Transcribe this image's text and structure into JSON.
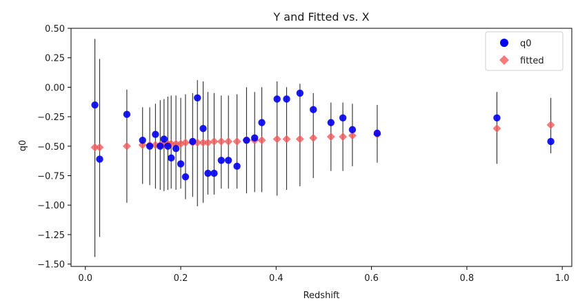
{
  "chart_data": {
    "type": "scatter",
    "title": "Y and Fitted vs. X",
    "xlabel": "Redshift",
    "ylabel": "q0",
    "xlim": [
      -0.03,
      1.02
    ],
    "ylim": [
      -1.52,
      0.5
    ],
    "xticks": [
      0.0,
      0.2,
      0.4,
      0.6,
      0.8,
      1.0
    ],
    "xtick_labels": [
      "0.0",
      "0.2",
      "0.4",
      "0.6",
      "0.8",
      "1.0"
    ],
    "yticks": [
      0.5,
      0.25,
      0.0,
      -0.25,
      -0.5,
      -0.75,
      -1.0,
      -1.25,
      -1.5
    ],
    "ytick_labels": [
      "0.50",
      "0.25",
      "0.00",
      "−0.25",
      "−0.50",
      "−0.75",
      "−1.00",
      "−1.25",
      "−1.50"
    ],
    "grid": false,
    "legend_position": "top-right",
    "series": [
      {
        "name": "q0",
        "marker": "circle",
        "color": "#0000ee",
        "points": [
          {
            "x": 0.02,
            "y": -0.15,
            "lo": -1.44,
            "hi": 0.41
          },
          {
            "x": 0.03,
            "y": -0.61,
            "lo": -1.27,
            "hi": 0.24
          },
          {
            "x": 0.087,
            "y": -0.23,
            "lo": -0.98,
            "hi": -0.02
          },
          {
            "x": 0.12,
            "y": -0.45,
            "lo": -0.82,
            "hi": -0.17
          },
          {
            "x": 0.135,
            "y": -0.5,
            "lo": -0.83,
            "hi": -0.17
          },
          {
            "x": 0.147,
            "y": -0.4,
            "lo": -0.86,
            "hi": -0.14
          },
          {
            "x": 0.157,
            "y": -0.5,
            "lo": -0.87,
            "hi": -0.11
          },
          {
            "x": 0.165,
            "y": -0.44,
            "lo": -0.88,
            "hi": -0.1
          },
          {
            "x": 0.173,
            "y": -0.5,
            "lo": -0.87,
            "hi": -0.08
          },
          {
            "x": 0.18,
            "y": -0.6,
            "lo": -0.86,
            "hi": -0.07
          },
          {
            "x": 0.19,
            "y": -0.52,
            "lo": -0.87,
            "hi": -0.07
          },
          {
            "x": 0.2,
            "y": -0.65,
            "lo": -0.86,
            "hi": -0.09
          },
          {
            "x": 0.21,
            "y": -0.76,
            "lo": -0.95,
            "hi": -0.06
          },
          {
            "x": 0.225,
            "y": -0.46,
            "lo": -0.93,
            "hi": -0.05
          },
          {
            "x": 0.235,
            "y": -0.09,
            "lo": -1.01,
            "hi": 0.06
          },
          {
            "x": 0.247,
            "y": -0.35,
            "lo": -0.98,
            "hi": 0.05
          },
          {
            "x": 0.257,
            "y": -0.73,
            "lo": -0.91,
            "hi": -0.04
          },
          {
            "x": 0.27,
            "y": -0.73,
            "lo": -0.91,
            "hi": -0.05
          },
          {
            "x": 0.285,
            "y": -0.62,
            "lo": -0.86,
            "hi": -0.07
          },
          {
            "x": 0.3,
            "y": -0.62,
            "lo": -0.86,
            "hi": -0.07
          },
          {
            "x": 0.318,
            "y": -0.67,
            "lo": -0.86,
            "hi": -0.06
          },
          {
            "x": 0.338,
            "y": -0.45,
            "lo": -0.9,
            "hi": -0.0
          },
          {
            "x": 0.355,
            "y": -0.43,
            "lo": -0.89,
            "hi": -0.04
          },
          {
            "x": 0.37,
            "y": -0.3,
            "lo": -0.89,
            "hi": -0.0
          },
          {
            "x": 0.402,
            "y": -0.1,
            "lo": -0.92,
            "hi": 0.05
          },
          {
            "x": 0.422,
            "y": -0.1,
            "lo": -0.87,
            "hi": -0.0
          },
          {
            "x": 0.45,
            "y": -0.05,
            "lo": -0.84,
            "hi": 0.03
          },
          {
            "x": 0.478,
            "y": -0.19,
            "lo": -0.77,
            "hi": -0.05
          },
          {
            "x": 0.515,
            "y": -0.3,
            "lo": -0.71,
            "hi": -0.13
          },
          {
            "x": 0.54,
            "y": -0.26,
            "lo": -0.71,
            "hi": -0.13
          },
          {
            "x": 0.56,
            "y": -0.36,
            "lo": -0.67,
            "hi": -0.14
          },
          {
            "x": 0.612,
            "y": -0.39,
            "lo": -0.64,
            "hi": -0.15
          },
          {
            "x": 0.863,
            "y": -0.26,
            "lo": -0.65,
            "hi": -0.04
          },
          {
            "x": 0.976,
            "y": -0.46,
            "lo": -0.56,
            "hi": -0.09
          }
        ]
      },
      {
        "name": "fitted",
        "marker": "diamond",
        "color": "#f05a5a",
        "x": [
          0.02,
          0.03,
          0.087,
          0.12,
          0.135,
          0.147,
          0.157,
          0.165,
          0.173,
          0.18,
          0.19,
          0.2,
          0.21,
          0.225,
          0.235,
          0.247,
          0.257,
          0.27,
          0.285,
          0.3,
          0.318,
          0.338,
          0.355,
          0.37,
          0.402,
          0.422,
          0.45,
          0.478,
          0.515,
          0.54,
          0.56,
          0.612,
          0.863,
          0.976
        ],
        "y": [
          -0.51,
          -0.51,
          -0.5,
          -0.49,
          -0.49,
          -0.49,
          -0.49,
          -0.48,
          -0.48,
          -0.48,
          -0.48,
          -0.48,
          -0.47,
          -0.47,
          -0.47,
          -0.47,
          -0.47,
          -0.46,
          -0.46,
          -0.46,
          -0.46,
          -0.45,
          -0.45,
          -0.45,
          -0.44,
          -0.44,
          -0.44,
          -0.43,
          -0.42,
          -0.42,
          -0.41,
          -0.4,
          -0.35,
          -0.32
        ]
      }
    ]
  }
}
